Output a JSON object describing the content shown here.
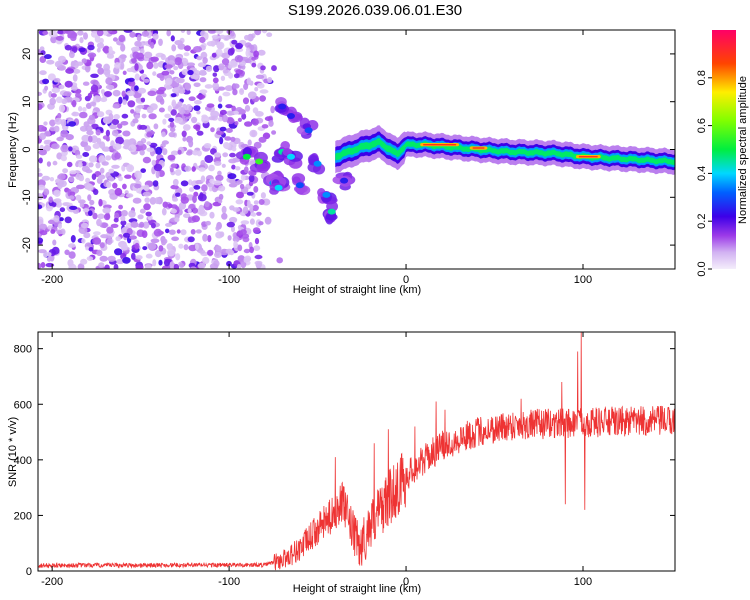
{
  "title": "S199.2026.039.06.01.E30",
  "chart_data": [
    {
      "type": "heatmap",
      "name": "spectrogram",
      "xlabel": "Height of straight line (km)",
      "ylabel": "Frequency (Hz)",
      "xlim": [
        -208,
        152
      ],
      "ylim": [
        -25,
        25
      ],
      "xticks": [
        -200,
        -100,
        0,
        100
      ],
      "xtick_labels": [
        "-200",
        "-100",
        "0",
        "100"
      ],
      "yticks": [
        -20,
        -10,
        0,
        10,
        20
      ],
      "ytick_labels": [
        "-20",
        "-10",
        "0",
        "10",
        "20"
      ],
      "colorbar": {
        "label": "Normalized spectral amplitude",
        "range": [
          0,
          1
        ],
        "ticks": [
          0.0,
          0.2,
          0.4,
          0.6,
          0.8
        ],
        "tick_labels": [
          "0.0",
          "0.2",
          "0.4",
          "0.6",
          "0.8"
        ]
      },
      "noise_region_x": [
        -208,
        -70
      ],
      "band_x": [
        -40,
        152
      ],
      "band_center_hz": [
        {
          "x": -40,
          "f": -1.5
        },
        {
          "x": -25,
          "f": 0.5
        },
        {
          "x": -15,
          "f": 1.5
        },
        {
          "x": -5,
          "f": -1
        },
        {
          "x": 0,
          "f": 1
        },
        {
          "x": 10,
          "f": 1
        },
        {
          "x": 40,
          "f": 0
        },
        {
          "x": 60,
          "f": -0.5
        },
        {
          "x": 85,
          "f": -0.8
        },
        {
          "x": 100,
          "f": -1.5
        },
        {
          "x": 150,
          "f": -2.5
        }
      ],
      "strong_segments": [
        {
          "x0": 8,
          "x1": 30,
          "f": 1
        },
        {
          "x0": 36,
          "x1": 46,
          "f": 0.3
        },
        {
          "x0": 96,
          "x1": 110,
          "f": -1.5
        }
      ],
      "scattered_clusters": [
        {
          "x": -90,
          "f": -1.5,
          "a": 0.5
        },
        {
          "x": -83,
          "f": -2.5,
          "a": 0.55
        },
        {
          "x": -70,
          "f": -0.5,
          "a": 0.45
        },
        {
          "x": -65,
          "f": -1.5,
          "a": 0.4
        },
        {
          "x": -75,
          "f": -7,
          "a": 0.35
        },
        {
          "x": -72,
          "f": -8,
          "a": 0.4
        },
        {
          "x": -60,
          "f": -7.5,
          "a": 0.3
        },
        {
          "x": -50,
          "f": -3,
          "a": 0.35
        },
        {
          "x": -45,
          "f": -9.5,
          "a": 0.35
        },
        {
          "x": -42,
          "f": -13,
          "a": 0.45
        },
        {
          "x": -55,
          "f": 4,
          "a": 0.3
        },
        {
          "x": -65,
          "f": 7,
          "a": 0.25
        },
        {
          "x": -70,
          "f": 9,
          "a": 0.25
        },
        {
          "x": -35,
          "f": -6.5,
          "a": 0.25
        }
      ]
    },
    {
      "type": "line",
      "name": "snr",
      "xlabel": "Height of straight line (km)",
      "ylabel": "SNR (10 * v/v)",
      "xlim": [
        -208,
        152
      ],
      "ylim": [
        0,
        860
      ],
      "xticks": [
        -200,
        -100,
        0,
        100
      ],
      "xtick_labels": [
        "-200",
        "-100",
        "0",
        "100"
      ],
      "yticks": [
        0,
        200,
        400,
        600,
        800
      ],
      "ytick_labels": [
        "0",
        "200",
        "400",
        "600",
        "800"
      ],
      "color": "#ee3333",
      "trend": [
        {
          "x": -208,
          "y": 20
        },
        {
          "x": -80,
          "y": 22
        },
        {
          "x": -70,
          "y": 40
        },
        {
          "x": -60,
          "y": 80
        },
        {
          "x": -50,
          "y": 150
        },
        {
          "x": -42,
          "y": 200
        },
        {
          "x": -36,
          "y": 250
        },
        {
          "x": -30,
          "y": 140
        },
        {
          "x": -26,
          "y": 80
        },
        {
          "x": -20,
          "y": 170
        },
        {
          "x": -10,
          "y": 260
        },
        {
          "x": 0,
          "y": 340
        },
        {
          "x": 10,
          "y": 400
        },
        {
          "x": 20,
          "y": 450
        },
        {
          "x": 40,
          "y": 500
        },
        {
          "x": 60,
          "y": 525
        },
        {
          "x": 80,
          "y": 530
        },
        {
          "x": 100,
          "y": 535
        },
        {
          "x": 152,
          "y": 540
        }
      ],
      "spikes": [
        {
          "x": -40,
          "y": 410
        },
        {
          "x": -18,
          "y": 460
        },
        {
          "x": -10,
          "y": 510
        },
        {
          "x": 5,
          "y": 520
        },
        {
          "x": 17,
          "y": 610
        },
        {
          "x": 22,
          "y": 580
        },
        {
          "x": 65,
          "y": 620
        },
        {
          "x": 88,
          "y": 680
        },
        {
          "x": 90,
          "y": 240
        },
        {
          "x": 97,
          "y": 790
        },
        {
          "x": 99,
          "y": 860
        },
        {
          "x": 101,
          "y": 220
        }
      ]
    }
  ]
}
